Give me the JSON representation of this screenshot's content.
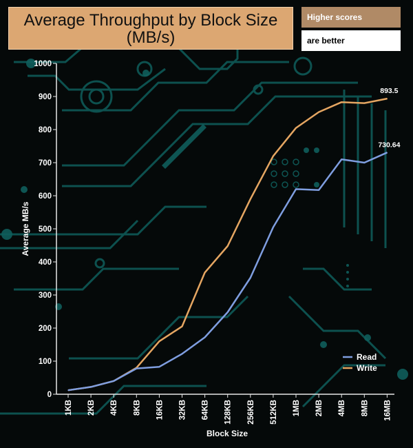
{
  "colors": {
    "read": "#7f9ee0",
    "write": "#e5a662",
    "axis": "#e8e8e8",
    "circuit": "#0f5e5c"
  },
  "notes": {
    "line1": "Higher scores",
    "line2": "are better"
  },
  "chart_data": {
    "type": "line",
    "title": "Average Throughput by Block Size (MB/s)",
    "title_lines": [
      "Average Throughput by Block Size",
      "(MB/s)"
    ],
    "xlabel": "Block Size",
    "ylabel": "Average MB/s",
    "categories": [
      "1KB",
      "2KB",
      "4KB",
      "8KB",
      "16KB",
      "32KB",
      "64KB",
      "128KB",
      "256KB",
      "512KB",
      "1MB",
      "2MB",
      "4MB",
      "8MB",
      "16MB"
    ],
    "ylim": [
      0,
      1000
    ],
    "yticks": [
      0,
      100,
      200,
      300,
      400,
      500,
      600,
      700,
      800,
      900,
      1000
    ],
    "legend_position": "bottom-right",
    "series": [
      {
        "name": "Read",
        "color_key": "read",
        "values": [
          12,
          22,
          40,
          78,
          83,
          122,
          172,
          248,
          352,
          505,
          620,
          617,
          710,
          700,
          730.64
        ],
        "end_label": "730.64"
      },
      {
        "name": "Write",
        "color_key": "write",
        "values": [
          12,
          22,
          40,
          80,
          160,
          205,
          368,
          448,
          590,
          720,
          805,
          853,
          883,
          880,
          893.5
        ],
        "end_label": "893.5"
      }
    ]
  }
}
